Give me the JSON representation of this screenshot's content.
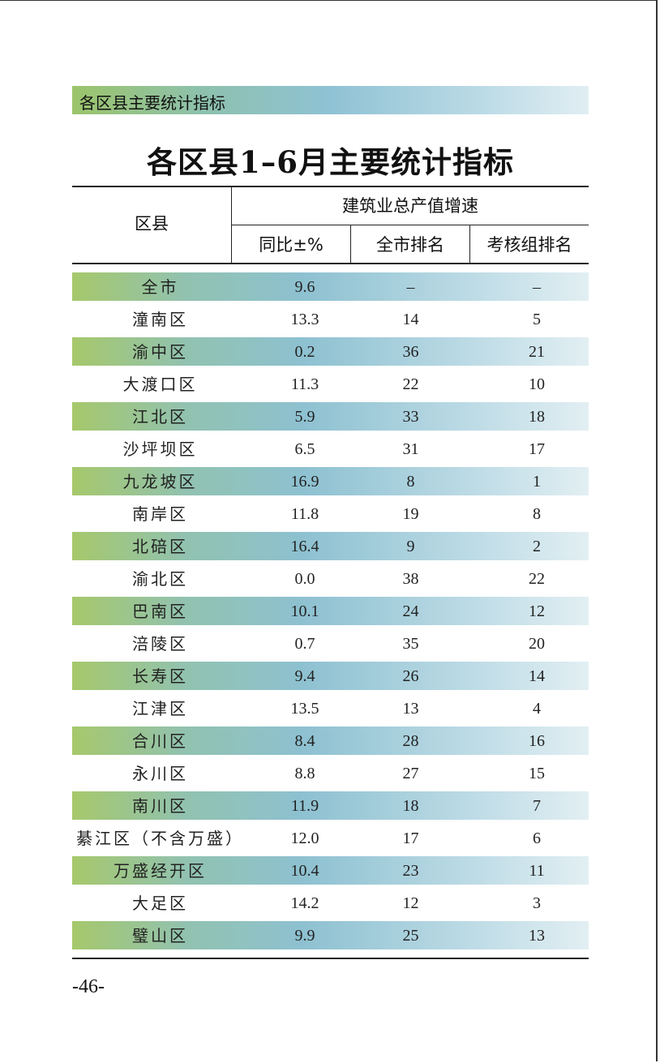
{
  "section_label": "各区县主要统计指标",
  "title": "各区县1–6月主要统计指标",
  "headers": {
    "region": "区县",
    "group": "建筑业总产值增速",
    "yoy": "同比±%",
    "city_rank": "全市排名",
    "group_rank": "考核组排名"
  },
  "rows": [
    {
      "name": "全市",
      "yoy": "9.6",
      "city_rank": "–",
      "group_rank": "–"
    },
    {
      "name": "潼南区",
      "yoy": "13.3",
      "city_rank": "14",
      "group_rank": "5"
    },
    {
      "name": "渝中区",
      "yoy": "0.2",
      "city_rank": "36",
      "group_rank": "21"
    },
    {
      "name": "大渡口区",
      "yoy": "11.3",
      "city_rank": "22",
      "group_rank": "10"
    },
    {
      "name": "江北区",
      "yoy": "5.9",
      "city_rank": "33",
      "group_rank": "18"
    },
    {
      "name": "沙坪坝区",
      "yoy": "6.5",
      "city_rank": "31",
      "group_rank": "17"
    },
    {
      "name": "九龙坡区",
      "yoy": "16.9",
      "city_rank": "8",
      "group_rank": "1"
    },
    {
      "name": "南岸区",
      "yoy": "11.8",
      "city_rank": "19",
      "group_rank": "8"
    },
    {
      "name": "北碚区",
      "yoy": "16.4",
      "city_rank": "9",
      "group_rank": "2"
    },
    {
      "name": "渝北区",
      "yoy": "0.0",
      "city_rank": "38",
      "group_rank": "22"
    },
    {
      "name": "巴南区",
      "yoy": "10.1",
      "city_rank": "24",
      "group_rank": "12"
    },
    {
      "name": "涪陵区",
      "yoy": "0.7",
      "city_rank": "35",
      "group_rank": "20"
    },
    {
      "name": "长寿区",
      "yoy": "9.4",
      "city_rank": "26",
      "group_rank": "14"
    },
    {
      "name": "江津区",
      "yoy": "13.5",
      "city_rank": "13",
      "group_rank": "4"
    },
    {
      "name": "合川区",
      "yoy": "8.4",
      "city_rank": "28",
      "group_rank": "16"
    },
    {
      "name": "永川区",
      "yoy": "8.8",
      "city_rank": "27",
      "group_rank": "15"
    },
    {
      "name": "南川区",
      "yoy": "11.9",
      "city_rank": "18",
      "group_rank": "7"
    },
    {
      "name": "綦江区（不含万盛）",
      "yoy": "12.0",
      "city_rank": "17",
      "group_rank": "6"
    },
    {
      "name": "万盛经开区",
      "yoy": "10.4",
      "city_rank": "23",
      "group_rank": "11"
    },
    {
      "name": "大足区",
      "yoy": "14.2",
      "city_rank": "12",
      "group_rank": "3"
    },
    {
      "name": "璧山区",
      "yoy": "9.9",
      "city_rank": "25",
      "group_rank": "13"
    }
  ],
  "page_number": "-46-"
}
